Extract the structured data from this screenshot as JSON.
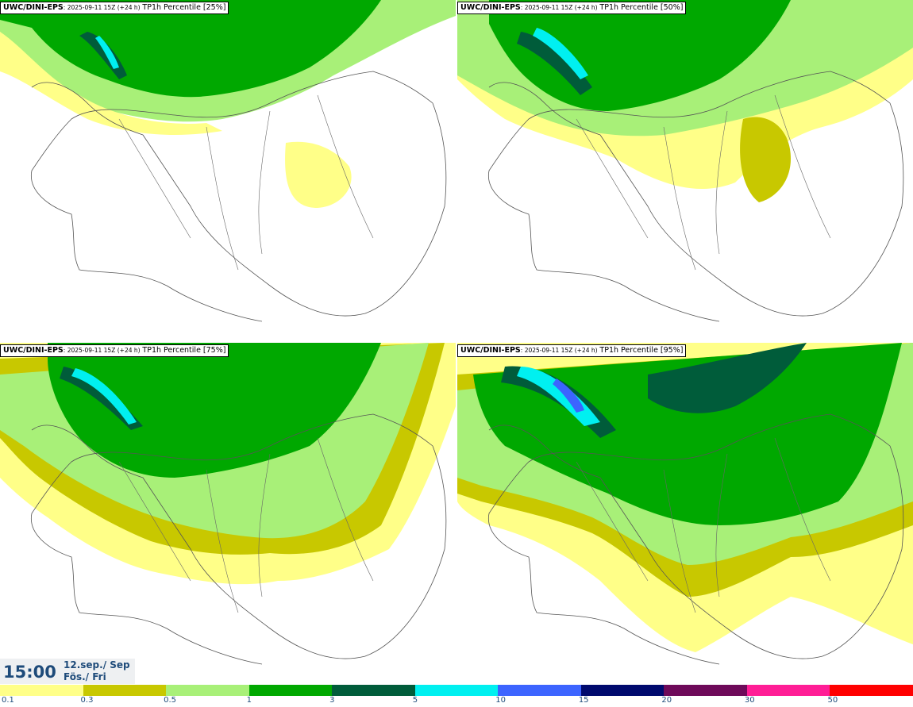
{
  "panels": [
    {
      "model": "UWC/DINI-EPS",
      "run": ": 2025-09-11 15Z (+24 h)",
      "field": "TP1h Percentile [25%]"
    },
    {
      "model": "UWC/DINI-EPS",
      "run": ": 2025-09-11 15Z (+24 h)",
      "field": "TP1h Percentile [50%]"
    },
    {
      "model": "UWC/DINI-EPS",
      "run": ": 2025-09-11 15Z (+24 h)",
      "field": "TP1h Percentile [75%]"
    },
    {
      "model": "UWC/DINI-EPS",
      "run": ": 2025-09-11 15Z (+24 h)",
      "field": "TP1h Percentile [95%]"
    }
  ],
  "valid_time": {
    "time": "15:00",
    "date_line1": "12.sep./ Sep",
    "date_line2": "Fös./ Fri"
  },
  "colorbar": {
    "ticks": [
      "0.1",
      "0.3",
      "0.5",
      "1",
      "3",
      "5",
      "10",
      "15",
      "20",
      "30",
      "50"
    ],
    "colors": [
      "#ffff88",
      "#c8c800",
      "#a8f078",
      "#00a800",
      "#005c3a",
      "#00f0f0",
      "#3c64ff",
      "#000a6e",
      "#6e0a5a",
      "#ff1e96",
      "#ff0000"
    ]
  }
}
